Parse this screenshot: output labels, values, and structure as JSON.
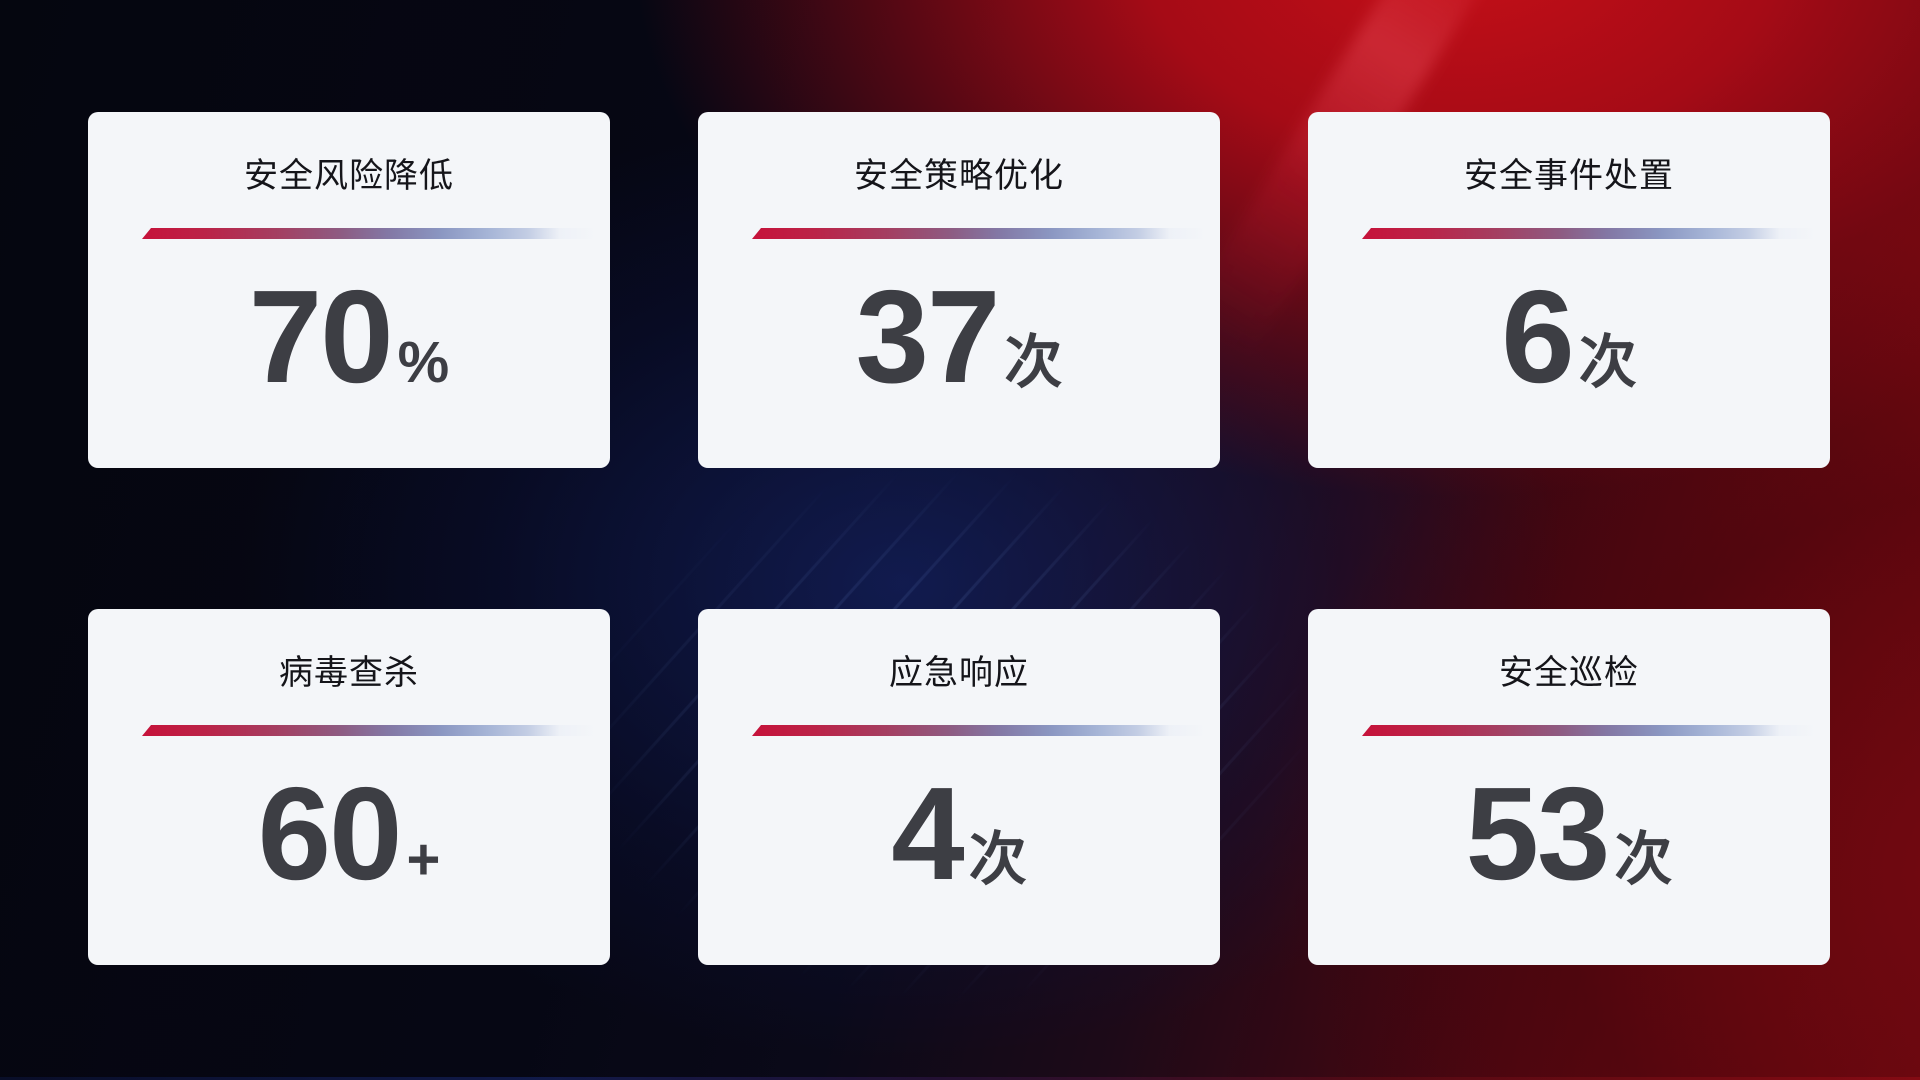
{
  "cards": [
    {
      "title": "安全风险降低",
      "value": "70",
      "unit": "%"
    },
    {
      "title": "安全策略优化",
      "value": "37",
      "unit": "次"
    },
    {
      "title": "安全事件处置",
      "value": "6",
      "unit": "次"
    },
    {
      "title": "病毒查杀",
      "value": "60",
      "unit": "+"
    },
    {
      "title": "应急响应",
      "value": "4",
      "unit": "次"
    },
    {
      "title": "安全巡检",
      "value": "53",
      "unit": "次"
    }
  ],
  "colors": {
    "card_background": "#f4f6f9",
    "title_text": "#15151a",
    "value_text": "#3d3e44",
    "divider_gradient_start": "#c6123a",
    "divider_gradient_end": "#a5b4d6",
    "background_dark_navy": "#05060f",
    "background_red": "#b50d16",
    "background_blue_glow": "#16266e"
  }
}
